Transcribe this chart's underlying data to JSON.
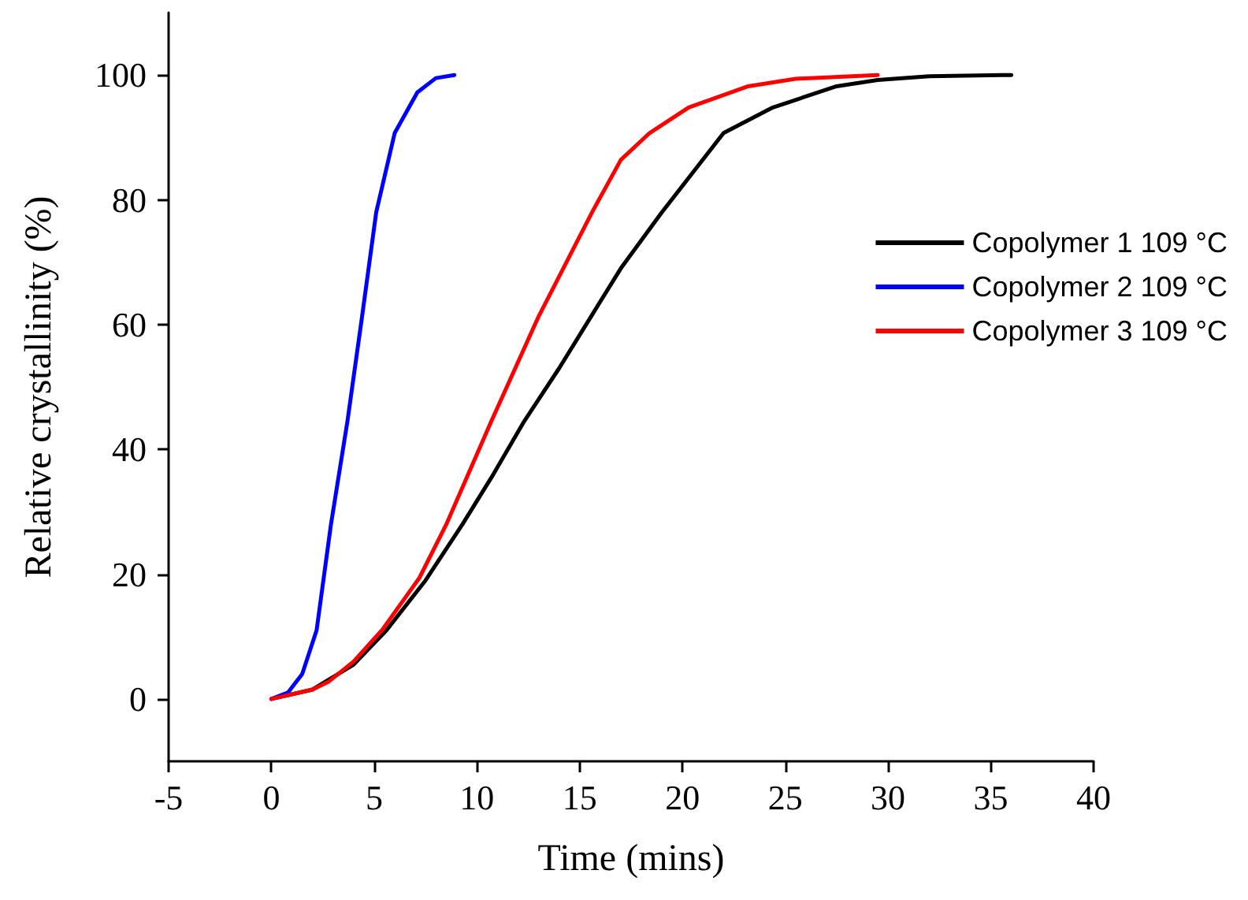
{
  "chart_data": {
    "type": "line",
    "xlabel": "Time (mins)",
    "ylabel": "Relative crystallinity (%)",
    "xlim": [
      -5,
      40
    ],
    "xticks": [
      -5,
      0,
      5,
      10,
      15,
      20,
      25,
      30,
      35,
      40
    ],
    "ylim": [
      -10,
      110
    ],
    "yticks": [
      0,
      20,
      40,
      60,
      80,
      100
    ],
    "grid": false,
    "legend": "right",
    "marker": "none",
    "line_style": "solid",
    "series": [
      {
        "name": "Copolymer 1 109 °C",
        "color": "#000000",
        "x": [
          0,
          2,
          4,
          5.6,
          7.5,
          9.3,
          10.8,
          12.3,
          14,
          15.5,
          17,
          19,
          22,
          24.4,
          27.5,
          29.5,
          32,
          36
        ],
        "values": [
          0,
          1.5,
          5.5,
          11,
          19,
          28,
          36,
          44.5,
          53,
          61,
          69,
          78,
          90.7,
          94.8,
          98.2,
          99.2,
          99.8,
          100
        ]
      },
      {
        "name": "Copolymer 2 109 °C",
        "color": "#0000ff",
        "x": [
          0,
          0.8,
          1.5,
          2.2,
          2.9,
          3.7,
          4.4,
          5.1,
          6,
          7.1,
          8,
          8.9
        ],
        "values": [
          0,
          1,
          4,
          11,
          28,
          44.5,
          61,
          78,
          90.7,
          97.2,
          99.5,
          100
        ]
      },
      {
        "name": "Copolymer 3 109 °C",
        "color": "#ff0000",
        "x": [
          0,
          2,
          2.8,
          4,
          5.4,
          7.2,
          8.5,
          10.7,
          13,
          15.6,
          17,
          18.4,
          20.3,
          23.2,
          25.5,
          29.5
        ],
        "values": [
          0,
          1.5,
          2.8,
          6,
          11.1,
          19.4,
          27.9,
          44.5,
          61.3,
          78,
          86.4,
          90.7,
          94.8,
          98.2,
          99.4,
          100
        ]
      }
    ]
  }
}
